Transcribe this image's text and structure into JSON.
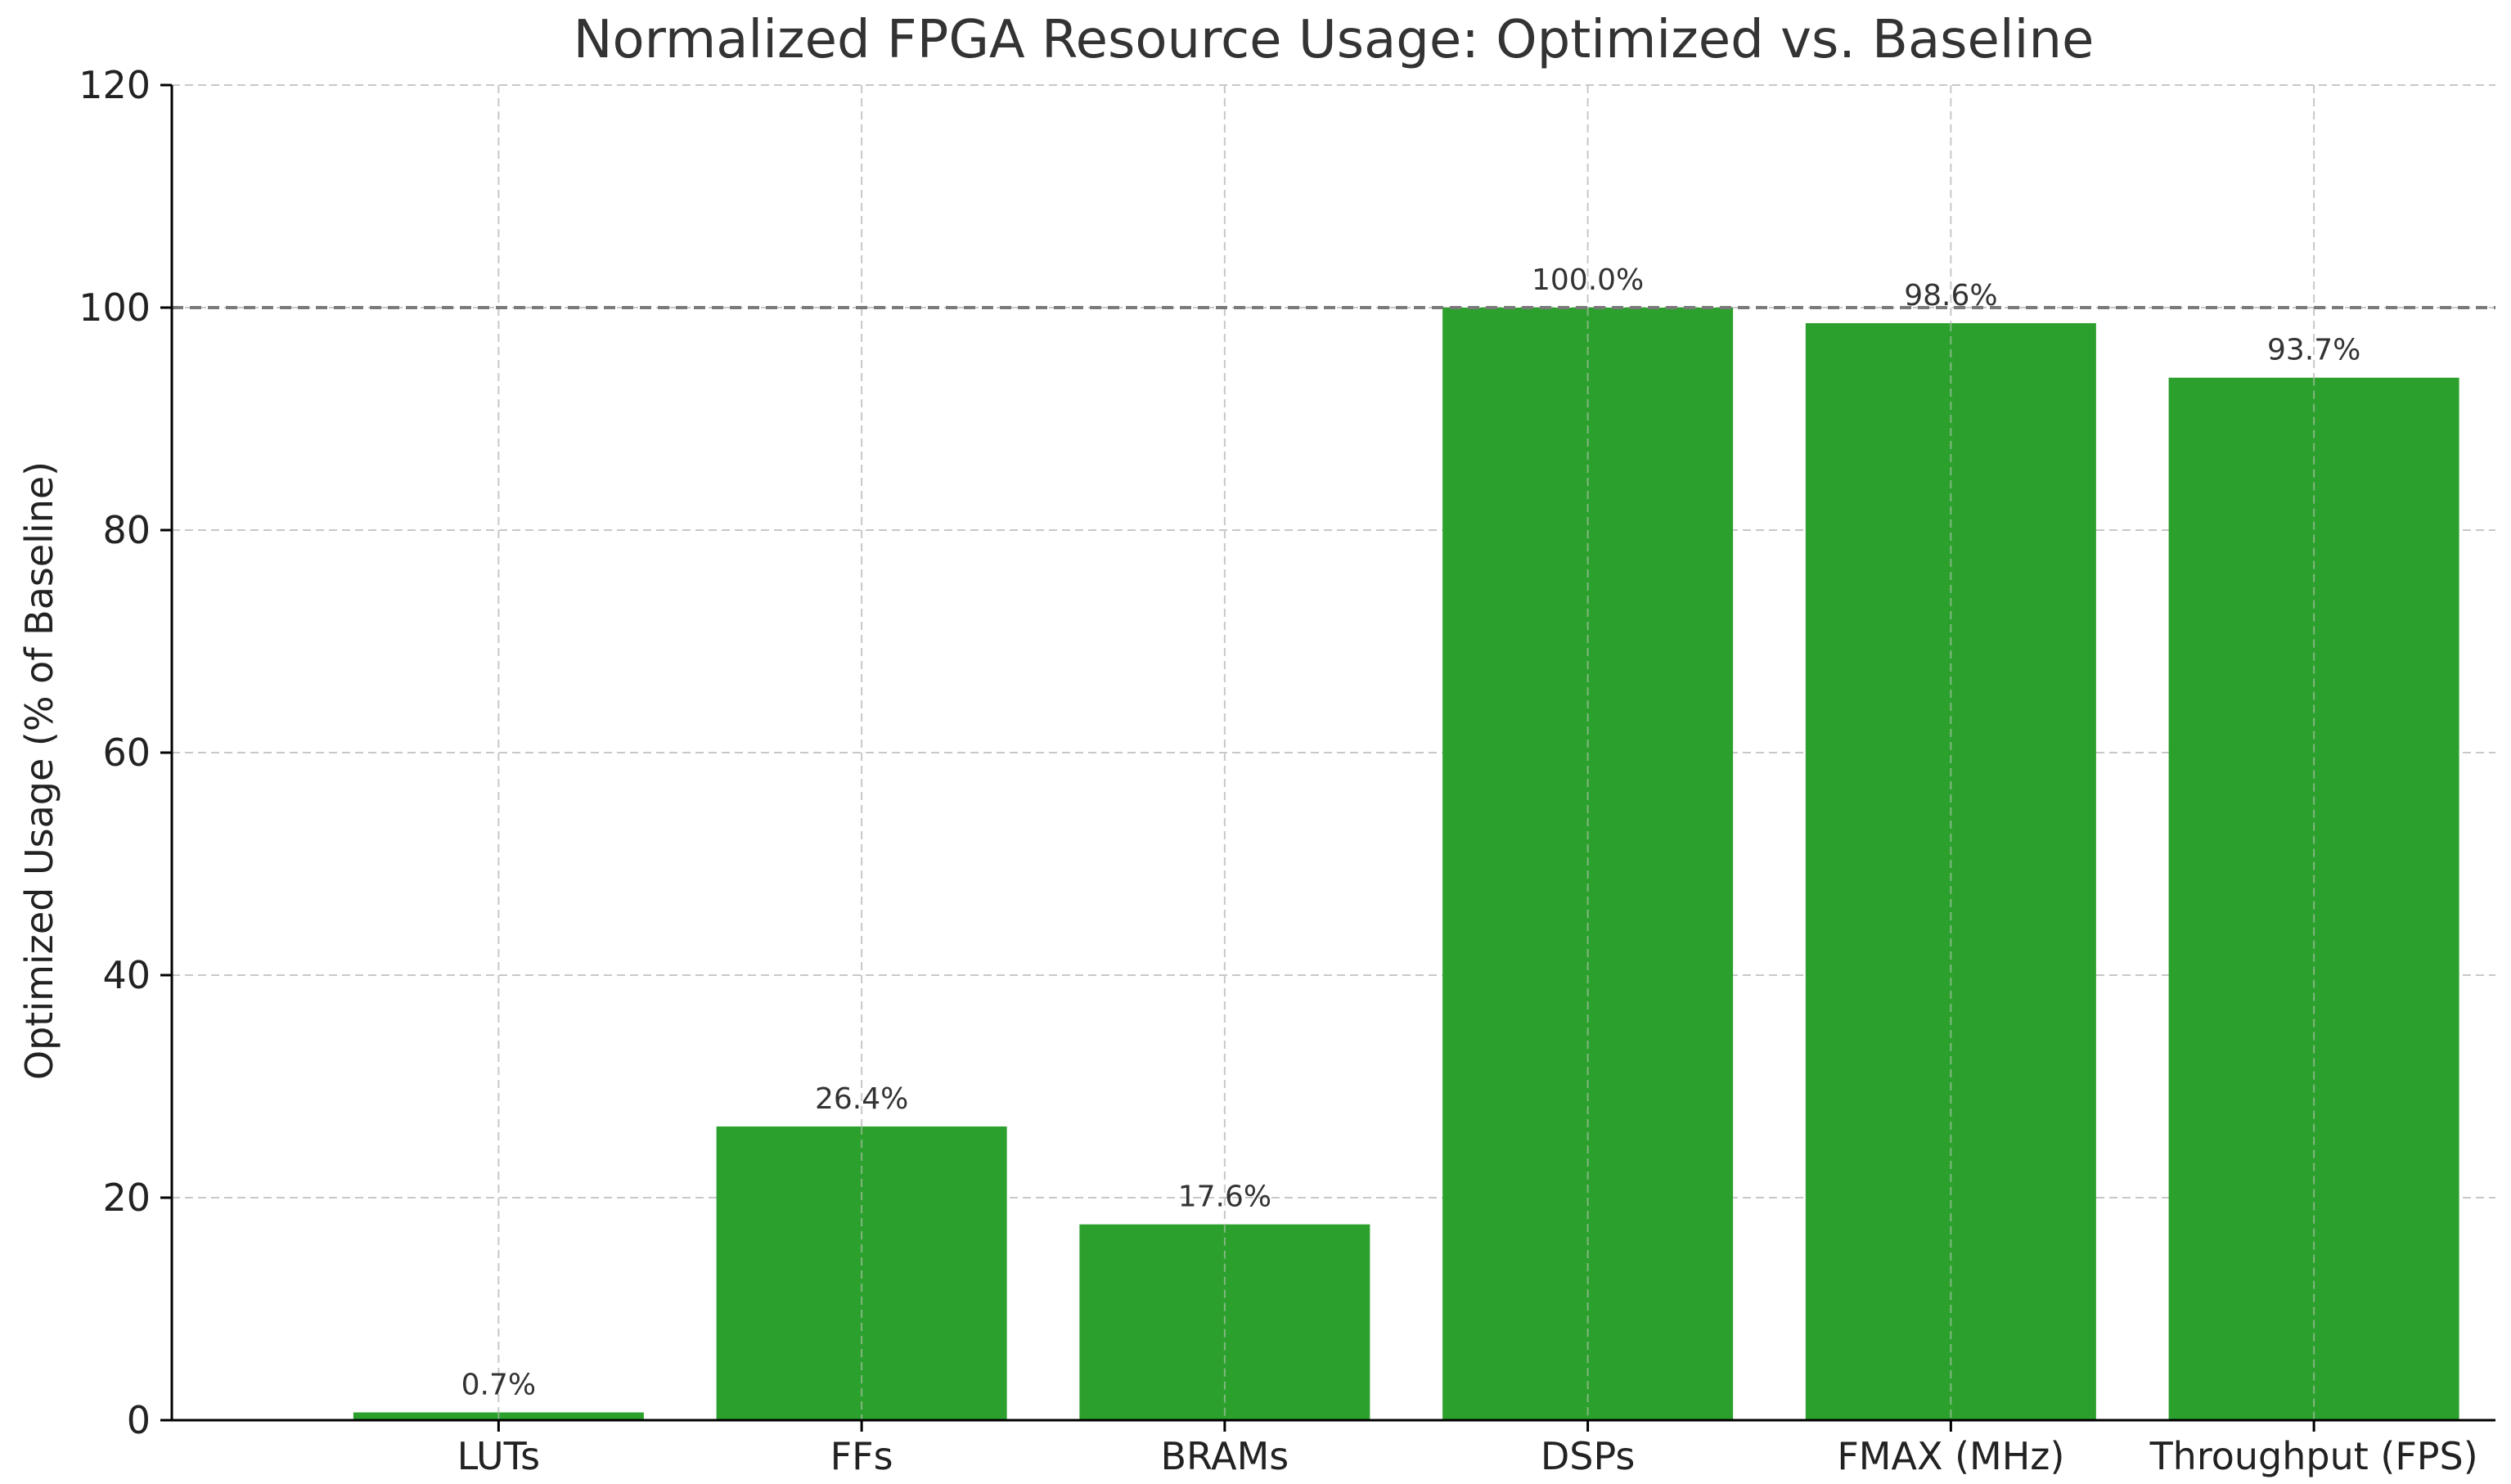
{
  "chart_data": {
    "type": "bar",
    "title": "Normalized FPGA Resource Usage: Optimized vs. Baseline",
    "xlabel": "",
    "ylabel": "Optimized Usage (% of Baseline)",
    "categories": [
      "LUTs",
      "FFs",
      "BRAMs",
      "DSPs",
      "FMAX (MHz)",
      "Throughput (FPS)"
    ],
    "values": [
      0.7,
      26.4,
      17.6,
      100.0,
      98.6,
      93.7
    ],
    "data_labels": [
      "0.7%",
      "26.4%",
      "17.6%",
      "100.0%",
      "98.6%",
      "93.7%"
    ],
    "ylim": [
      0,
      120
    ],
    "yticks": [
      0,
      20,
      40,
      60,
      80,
      100,
      120
    ],
    "reference_line": 100,
    "grid": true,
    "bar_color": "#2ca02c"
  }
}
